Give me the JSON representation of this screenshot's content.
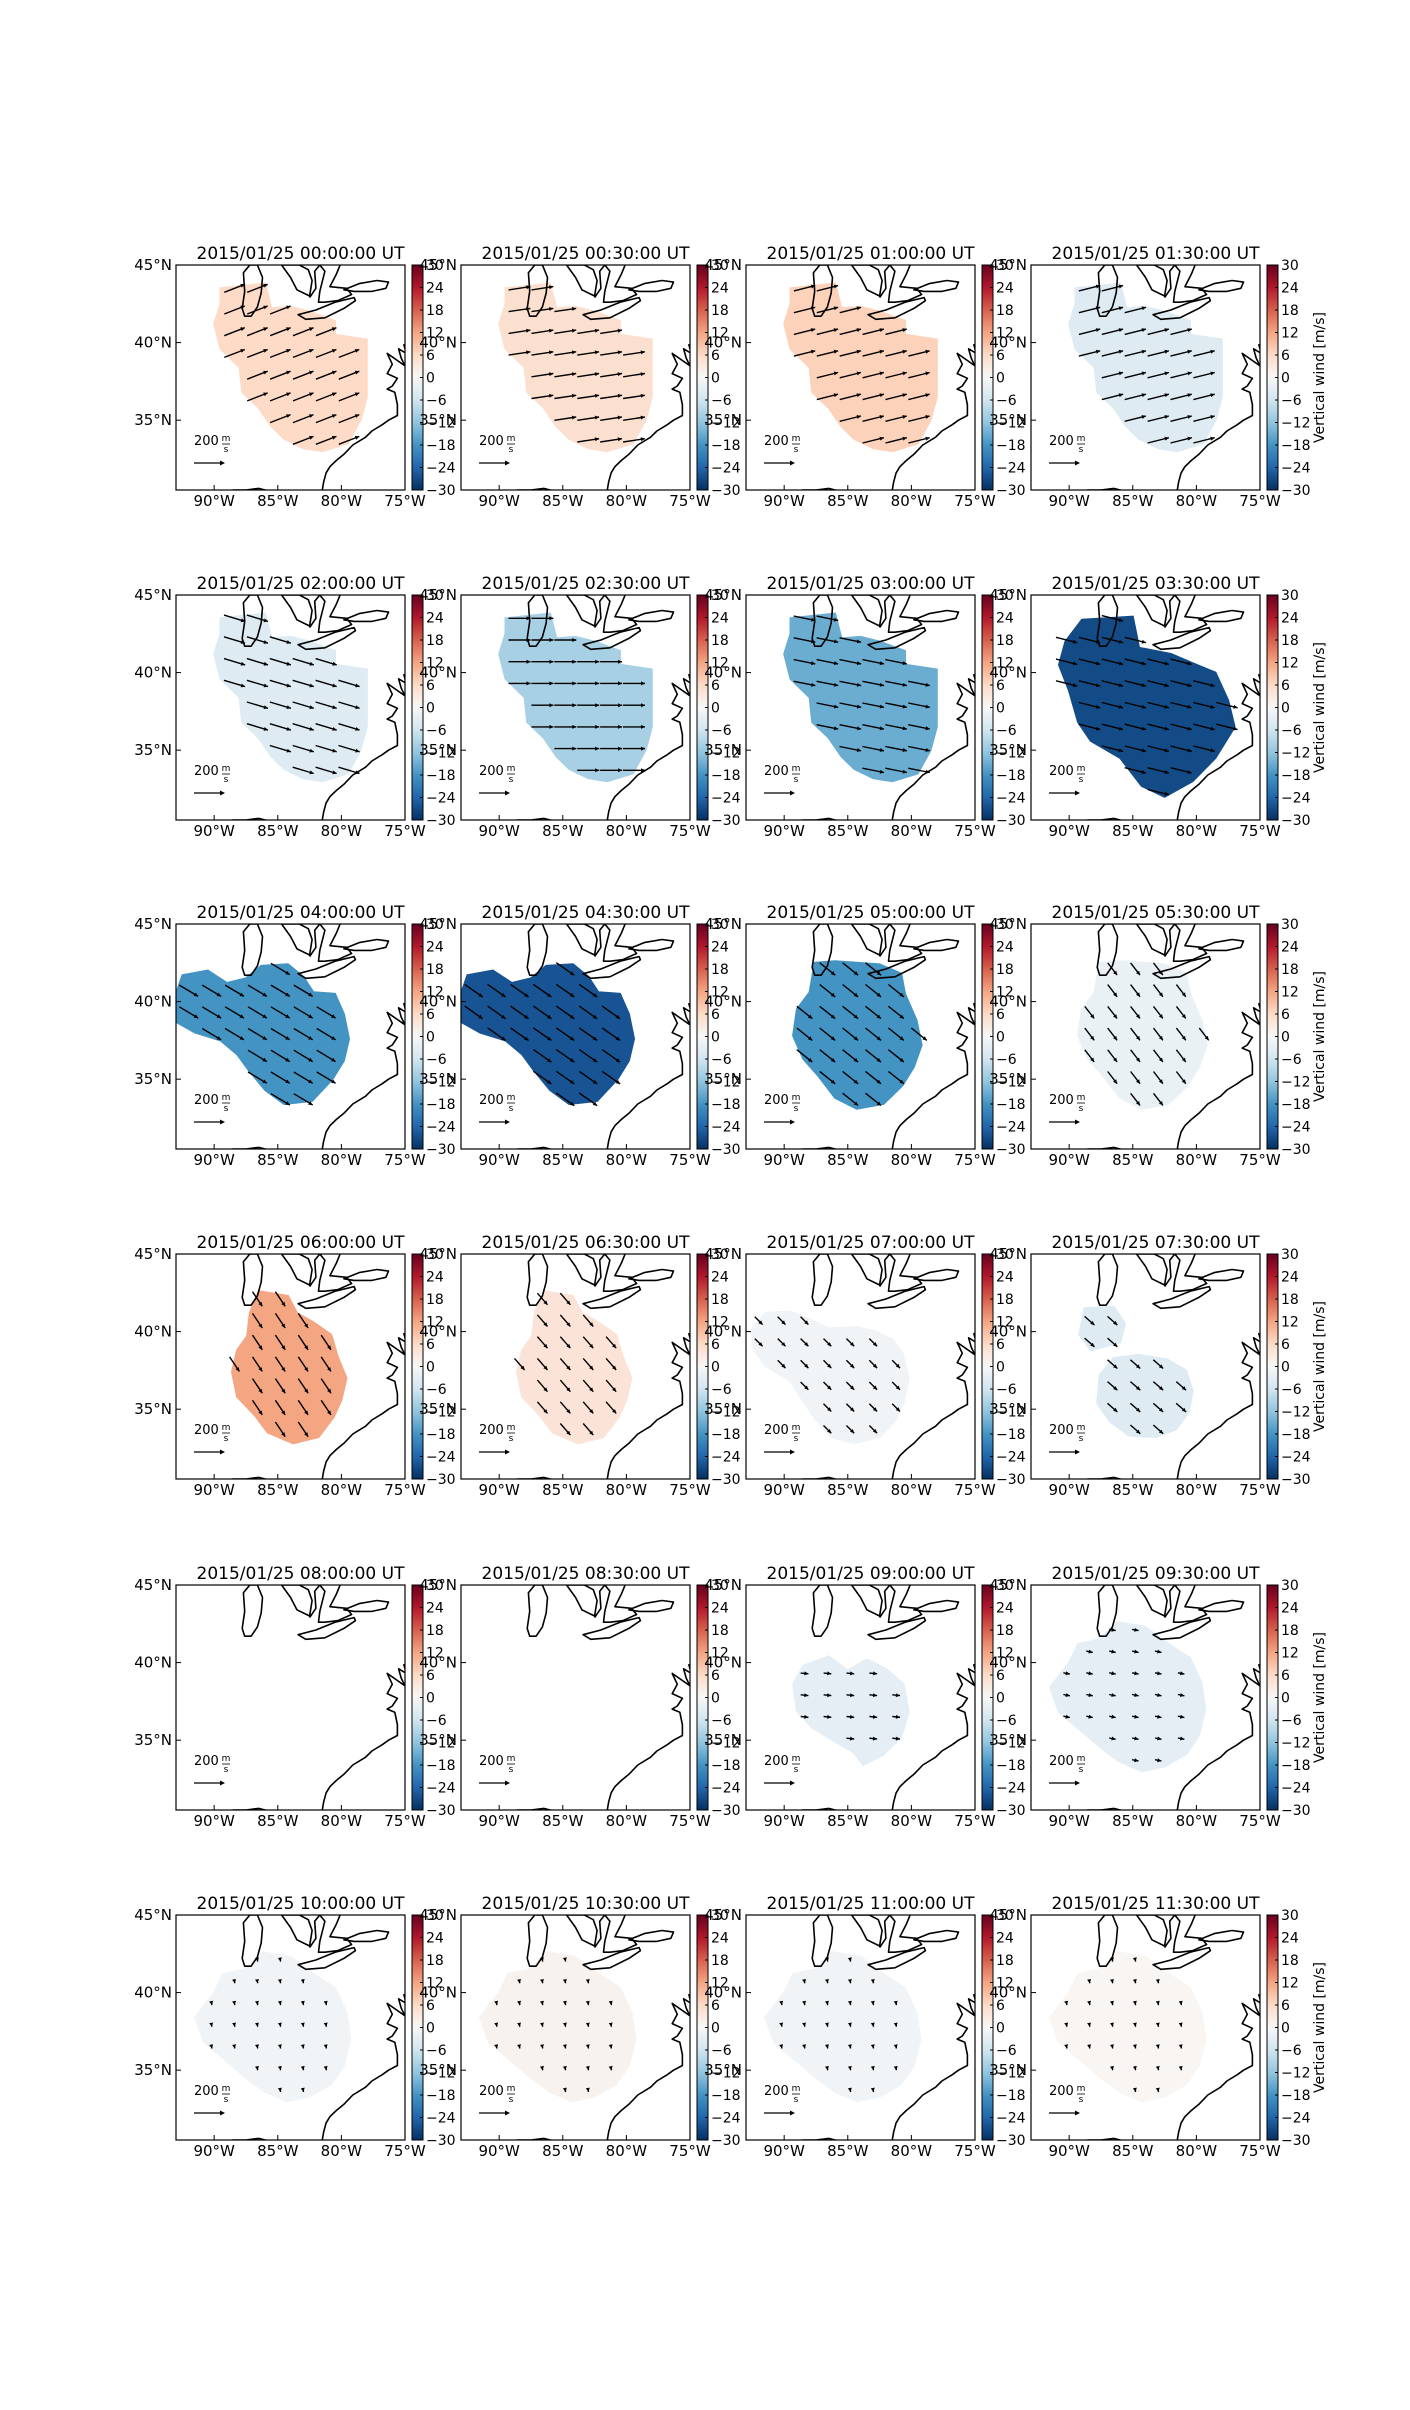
{
  "figure": {
    "colorbar_label": "Vertical wind [m/s]",
    "colorbar_ticks": [
      "30",
      "24",
      "18",
      "12",
      "6",
      "0",
      "−6",
      "−12",
      "−18",
      "−24",
      "−30"
    ],
    "colorbar_ticks_numeric": [
      30,
      24,
      18,
      12,
      6,
      0,
      -6,
      -12,
      -18,
      -24,
      -30
    ],
    "colormap": "RdBu_r",
    "vmin": -30,
    "vmax": 30,
    "lon_ticks": [
      "90°W",
      "85°W",
      "80°W",
      "75°W"
    ],
    "lat_ticks": [
      "45°N",
      "40°N",
      "35°N"
    ],
    "lat_ticks_overlap": [
      "45°N",
      "40°N",
      "35°N"
    ],
    "quiver_key": {
      "value": "200",
      "unit_num": "m",
      "unit_den": "s"
    },
    "map_extent": {
      "lon": [
        -93,
        -75
      ],
      "lat": [
        30.5,
        45
      ]
    }
  },
  "panels": [
    {
      "title": "2015/01/25 00:00:00 UT",
      "value": 6,
      "shape": "a",
      "arrow": {
        "dx": 0.9,
        "dy": -0.35,
        "len": 1.0
      }
    },
    {
      "title": "2015/01/25 00:30:00 UT",
      "value": 5,
      "shape": "a",
      "arrow": {
        "dx": 1.0,
        "dy": -0.15,
        "len": 1.0
      }
    },
    {
      "title": "2015/01/25 01:00:00 UT",
      "value": 7,
      "shape": "a",
      "arrow": {
        "dx": 1.0,
        "dy": -0.25,
        "len": 1.0
      }
    },
    {
      "title": "2015/01/25 01:30:00 UT",
      "value": -4,
      "shape": "a",
      "arrow": {
        "dx": 1.0,
        "dy": -0.25,
        "len": 1.0
      }
    },
    {
      "title": "2015/01/25 02:00:00 UT",
      "value": -4,
      "shape": "a",
      "arrow": {
        "dx": 1.0,
        "dy": 0.3,
        "len": 1.0
      }
    },
    {
      "title": "2015/01/25 02:30:00 UT",
      "value": -10,
      "shape": "a",
      "arrow": {
        "dx": 1.0,
        "dy": 0.0,
        "len": 1.0
      }
    },
    {
      "title": "2015/01/25 03:00:00 UT",
      "value": -15,
      "shape": "a",
      "arrow": {
        "dx": 1.0,
        "dy": 0.2,
        "len": 1.0
      }
    },
    {
      "title": "2015/01/25 03:30:00 UT",
      "value": -27,
      "shape": "b",
      "arrow": {
        "dx": 1.0,
        "dy": 0.25,
        "len": 1.0
      }
    },
    {
      "title": "2015/01/25 04:00:00 UT",
      "value": -18,
      "shape": "c",
      "arrow": {
        "dx": 1.0,
        "dy": 0.6,
        "len": 1.0
      }
    },
    {
      "title": "2015/01/25 04:30:00 UT",
      "value": -26,
      "shape": "c",
      "arrow": {
        "dx": 1.0,
        "dy": 0.7,
        "len": 1.0
      }
    },
    {
      "title": "2015/01/25 05:00:00 UT",
      "value": -18,
      "shape": "d",
      "arrow": {
        "dx": 1.0,
        "dy": 0.8,
        "len": 0.9
      }
    },
    {
      "title": "2015/01/25 05:30:00 UT",
      "value": -2,
      "shape": "d",
      "arrow": {
        "dx": 0.7,
        "dy": 0.9,
        "len": 0.7
      }
    },
    {
      "title": "2015/01/25 06:00:00 UT",
      "value": 12,
      "shape": "e",
      "arrow": {
        "dx": 0.6,
        "dy": 0.9,
        "len": 0.8
      }
    },
    {
      "title": "2015/01/25 06:30:00 UT",
      "value": 4,
      "shape": "e",
      "arrow": {
        "dx": 0.7,
        "dy": 0.8,
        "len": 0.7
      }
    },
    {
      "title": "2015/01/25 07:00:00 UT",
      "value": -1,
      "shape": "f",
      "arrow": {
        "dx": 0.8,
        "dy": 0.8,
        "len": 0.5
      }
    },
    {
      "title": "2015/01/25 07:30:00 UT",
      "value": -4,
      "shape": "g",
      "arrow": {
        "dx": 0.8,
        "dy": 0.7,
        "len": 0.6
      }
    },
    {
      "title": "2015/01/25 08:00:00 UT",
      "value": 0,
      "shape": "none",
      "arrow": {
        "dx": 0,
        "dy": 0,
        "len": 0
      }
    },
    {
      "title": "2015/01/25 08:30:00 UT",
      "value": 0,
      "shape": "none",
      "arrow": {
        "dx": 0,
        "dy": 0,
        "len": 0
      }
    },
    {
      "title": "2015/01/25 09:00:00 UT",
      "value": -3,
      "shape": "h",
      "arrow": {
        "dx": 1.0,
        "dy": 0.1,
        "len": 0.35
      }
    },
    {
      "title": "2015/01/25 09:30:00 UT",
      "value": -3,
      "shape": "i",
      "arrow": {
        "dx": 1.0,
        "dy": 0.2,
        "len": 0.3
      }
    },
    {
      "title": "2015/01/25 10:00:00 UT",
      "value": -1,
      "shape": "i",
      "arrow": {
        "dx": 0.2,
        "dy": 1.0,
        "len": 0.15
      }
    },
    {
      "title": "2015/01/25 10:30:00 UT",
      "value": 1,
      "shape": "i",
      "arrow": {
        "dx": 0.2,
        "dy": 1.0,
        "len": 0.15
      }
    },
    {
      "title": "2015/01/25 11:00:00 UT",
      "value": -1,
      "shape": "i",
      "arrow": {
        "dx": 0.2,
        "dy": 1.0,
        "len": 0.15
      }
    },
    {
      "title": "2015/01/25 11:30:00 UT",
      "value": 0.5,
      "shape": "i",
      "arrow": {
        "dx": 0.2,
        "dy": 1.0,
        "len": 0.15
      }
    }
  ]
}
